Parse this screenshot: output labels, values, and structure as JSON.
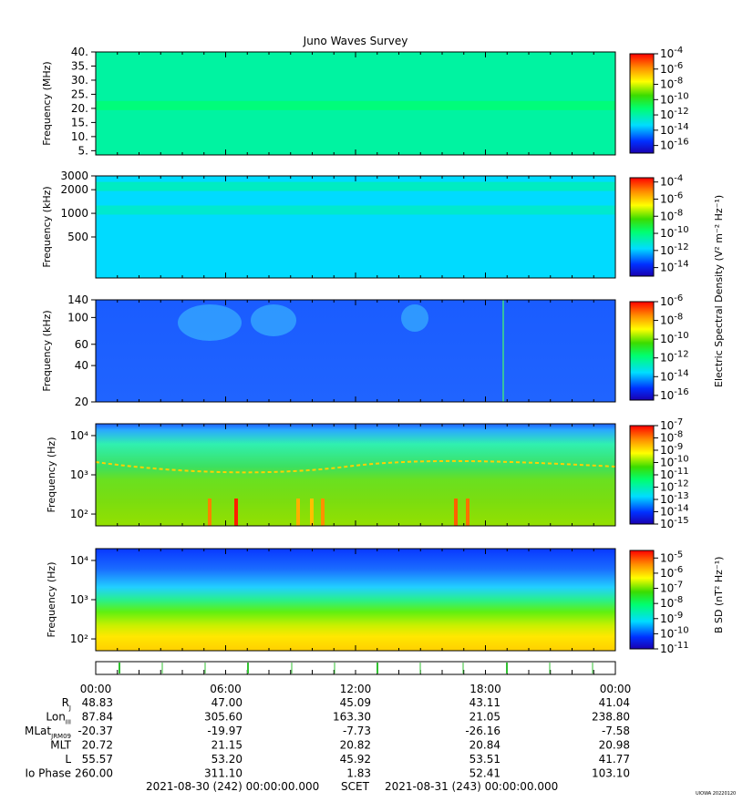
{
  "title": "Juno Waves Survey",
  "footer_left": "2021-08-30 (242) 00:00:00.000",
  "footer_mid": "SCET",
  "footer_right": "2021-08-31 (243) 00:00:00.000",
  "watermark": "UIOWA 20220120",
  "time_ticks": [
    "00:00",
    "06:00",
    "12:00",
    "18:00",
    "00:00"
  ],
  "colorbar_label_e": "Electric Spectral Density (V² m⁻² Hz⁻¹)",
  "colorbar_label_b": "B SD (nT² Hz⁻¹)",
  "ephemeris": [
    {
      "label": "R",
      "sub": "J",
      "values": [
        "48.83",
        "47.00",
        "45.09",
        "43.11",
        "41.04"
      ]
    },
    {
      "label": "Lon",
      "sub": "III",
      "values": [
        "87.84",
        "305.60",
        "163.30",
        "21.05",
        "238.80"
      ]
    },
    {
      "label": "MLat",
      "sub": "JRM09",
      "values": [
        "-20.37",
        "-19.97",
        "-7.73",
        "-26.16",
        "-7.58"
      ]
    },
    {
      "label": "MLT",
      "sub": "",
      "values": [
        "20.72",
        "21.15",
        "20.82",
        "20.84",
        "20.98"
      ]
    },
    {
      "label": "L",
      "sub": "",
      "values": [
        "55.57",
        "53.20",
        "45.92",
        "53.51",
        "41.77"
      ]
    },
    {
      "label": "Io Phase",
      "sub": "",
      "values": [
        "260.00",
        "311.10",
        "1.83",
        "52.41",
        "103.10"
      ]
    }
  ],
  "chart_data": [
    {
      "type": "heatmap",
      "ylabel": "Frequency (MHz)",
      "yscale": "linear",
      "ylim": [
        3.5,
        40
      ],
      "yticks": [
        "5.",
        "10.",
        "15.",
        "20.",
        "25.",
        "30.",
        "35.",
        "40."
      ],
      "ytick_values": [
        5,
        10,
        15,
        20,
        25,
        30,
        35,
        40
      ],
      "background_level": -11.9,
      "bands": [
        {
          "freq": 21,
          "level": -11.2
        }
      ],
      "colorbar": {
        "ticks": [
          "10-4",
          "10-6",
          "10-8",
          "10-10",
          "10-12",
          "10-14",
          "10-16"
        ],
        "exponents": [
          -4,
          -6,
          -8,
          -10,
          -12,
          -14,
          -16
        ],
        "range": [
          -17,
          -4
        ]
      }
    },
    {
      "type": "heatmap",
      "ylabel": "Frequency (kHz)",
      "yscale": "log",
      "ylim": [
        150,
        3000
      ],
      "yticks": [
        "3000",
        "2000",
        "1000",
        "500"
      ],
      "ytick_values": [
        3000,
        2000,
        1000,
        500
      ],
      "background_level": -11.8,
      "bands": [
        {
          "freq": 2200,
          "level": -10.8
        },
        {
          "freq": 1100,
          "level": -11.0
        }
      ],
      "colorbar": {
        "ticks": [
          "10-4",
          "10-6",
          "10-8",
          "10-10",
          "10-12",
          "10-14"
        ],
        "exponents": [
          -4,
          -6,
          -8,
          -10,
          -12,
          -14
        ],
        "range": [
          -15,
          -3.5
        ]
      }
    },
    {
      "type": "heatmap",
      "ylabel": "Frequency (kHz)",
      "yscale": "log",
      "ylim": [
        20,
        140
      ],
      "yticks": [
        "140",
        "100",
        "60",
        "40",
        "20"
      ],
      "ytick_values": [
        140,
        100,
        60,
        40,
        20
      ],
      "background_level": -14.2,
      "colorbar": {
        "ticks": [
          "10-6",
          "10-8",
          "10-10",
          "10-12",
          "10-14",
          "10-16"
        ],
        "exponents": [
          -6,
          -8,
          -10,
          -12,
          -14,
          -16
        ],
        "range": [
          -16.5,
          -6
        ]
      }
    },
    {
      "type": "heatmap",
      "ylabel": "Frequency (Hz)",
      "yscale": "log",
      "ylim": [
        50,
        20000
      ],
      "yticks": [
        "10⁴",
        "10³",
        "10²"
      ],
      "ytick_values": [
        10000,
        1000,
        100
      ],
      "background_level": -11.5,
      "colorbar": {
        "ticks": [
          "10-7",
          "10-8",
          "10-9",
          "10-10",
          "10-11",
          "10-12",
          "10-13",
          "10-14",
          "10-15"
        ],
        "exponents": [
          -7,
          -8,
          -9,
          -10,
          -11,
          -12,
          -13,
          -14,
          -15
        ],
        "range": [
          -15,
          -7
        ]
      }
    },
    {
      "type": "heatmap",
      "ylabel": "Frequency (Hz)",
      "yscale": "log",
      "ylim": [
        50,
        20000
      ],
      "yticks": [
        "10⁴",
        "10³",
        "10²"
      ],
      "ytick_values": [
        10000,
        1000,
        100
      ],
      "background_level": -8.5,
      "colorbar": {
        "ticks": [
          "10-5",
          "10-6",
          "10-7",
          "10-8",
          "10-9",
          "10-10",
          "10-11"
        ],
        "exponents": [
          -5,
          -6,
          -7,
          -8,
          -9,
          -10,
          -11
        ],
        "range": [
          -11,
          -4.5
        ]
      }
    }
  ]
}
